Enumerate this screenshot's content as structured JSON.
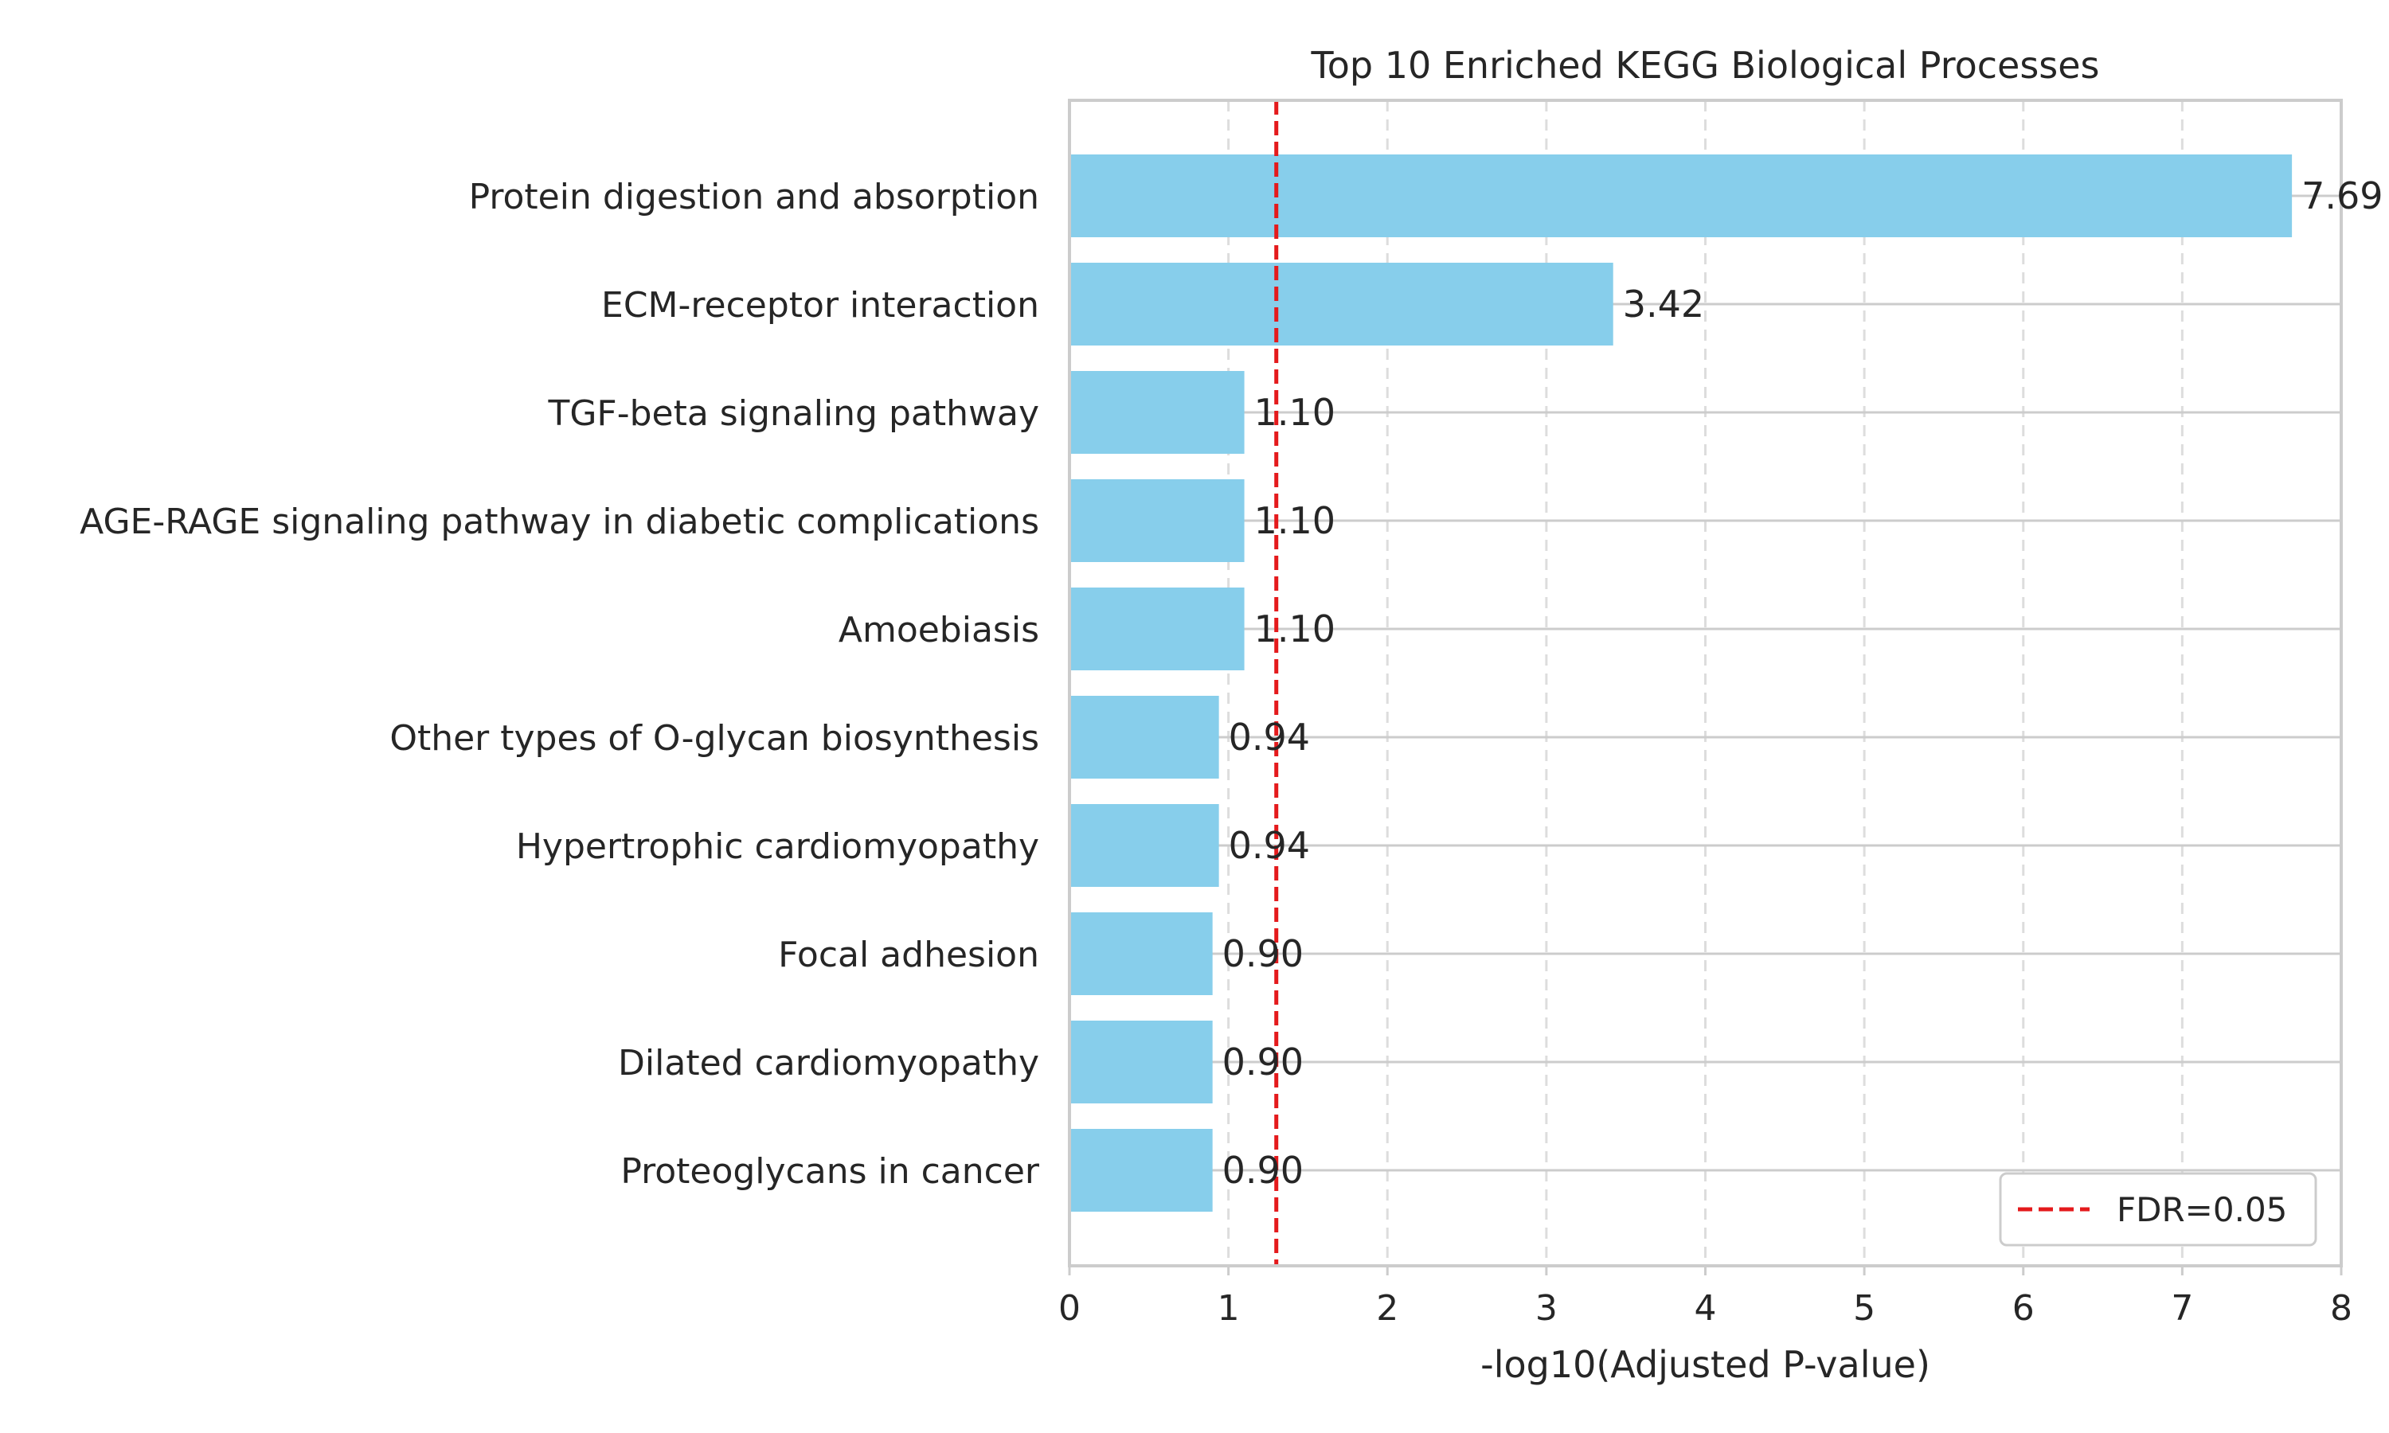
{
  "chart_data": {
    "type": "bar",
    "orientation": "horizontal",
    "title": "Top 10 Enriched KEGG Biological Processes",
    "xlabel": "-log10(Adjusted P-value)",
    "ylabel": "",
    "xlim": [
      0,
      8
    ],
    "xticks": [
      0,
      1,
      2,
      3,
      4,
      5,
      6,
      7,
      8
    ],
    "grid": true,
    "categories": [
      "Protein digestion and absorption",
      "ECM-receptor interaction",
      "TGF-beta signaling pathway",
      "AGE-RAGE signaling pathway in diabetic complications",
      "Amoebiasis",
      "Other types of O-glycan biosynthesis",
      "Hypertrophic cardiomyopathy",
      "Focal adhesion",
      "Dilated cardiomyopathy",
      "Proteoglycans in cancer"
    ],
    "values": [
      7.69,
      3.42,
      1.1,
      1.1,
      1.1,
      0.94,
      0.94,
      0.9,
      0.9,
      0.9
    ],
    "data_labels": [
      "7.69",
      "3.42",
      "1.10",
      "1.10",
      "1.10",
      "0.94",
      "0.94",
      "0.90",
      "0.90",
      "0.90"
    ],
    "bar_color": "#87CEEB",
    "threshold": {
      "value": 1.30103,
      "label": "FDR=0.05",
      "color": "#e41a1c",
      "style": "dashed"
    },
    "legend_position": "bottom-right"
  }
}
